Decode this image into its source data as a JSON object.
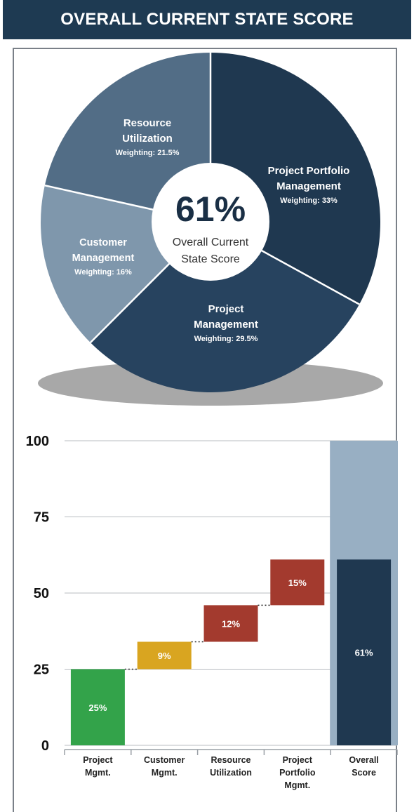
{
  "header": {
    "title": "OVERALL CURRENT STATE SCORE"
  },
  "pie": {
    "center_value": "61%",
    "center_label_line1": "Overall Current",
    "center_label_line2": "State Score",
    "slices": [
      {
        "name": "Project Portfolio Management",
        "lines": [
          "Project Portfolio",
          "Management"
        ],
        "weighting": "Weighting: 33%",
        "value": 33,
        "color": "#1f3850"
      },
      {
        "name": "Project Management",
        "lines": [
          "Project",
          "Management"
        ],
        "weighting": "Weighting: 29.5%",
        "value": 29.5,
        "color": "#27435f"
      },
      {
        "name": "Customer Management",
        "lines": [
          "Customer",
          "Management"
        ],
        "weighting": "Weighting: 16%",
        "value": 16,
        "color": "#7f97ac"
      },
      {
        "name": "Resource Utilization",
        "lines": [
          "Resource",
          "Utilization"
        ],
        "weighting": "Weighting: 21.5%",
        "value": 21.5,
        "color": "#526d86"
      }
    ]
  },
  "chart_data": {
    "type": "bar",
    "subtype": "waterfall",
    "ylim": [
      0,
      100
    ],
    "yticks": [
      "0",
      "25",
      "50",
      "75",
      "100"
    ],
    "grid": true,
    "categories": [
      [
        "Project",
        "Mgmt."
      ],
      [
        "Customer",
        "Mgmt."
      ],
      [
        "Resource",
        "Utilization"
      ],
      [
        "Project",
        "Portfolio",
        "Mgmt."
      ],
      [
        "Overall",
        "Score"
      ]
    ],
    "bars": [
      {
        "start": 0,
        "end": 25,
        "label": "25%",
        "color": "#33a34a"
      },
      {
        "start": 25,
        "end": 34,
        "label": "9%",
        "color": "#d9a520"
      },
      {
        "start": 34,
        "end": 46,
        "label": "12%",
        "color": "#a33a2e"
      },
      {
        "start": 46,
        "end": 61,
        "label": "15%",
        "color": "#a33a2e"
      },
      {
        "start": 0,
        "end": 61,
        "label": "61%",
        "color": "#1f3850"
      }
    ],
    "overall_background": {
      "start": 0,
      "end": 100,
      "color": "#98afc3"
    }
  }
}
